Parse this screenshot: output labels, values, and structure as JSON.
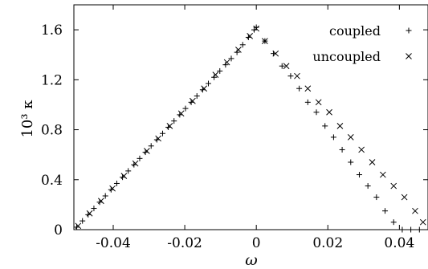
{
  "chart_data": {
    "type": "scatter",
    "xlabel": "ω",
    "ylabel": "10³ κ",
    "xlim": [
      -0.051,
      0.048
    ],
    "ylim": [
      0,
      1.8
    ],
    "xticks": [
      -0.04,
      -0.02,
      0,
      0.02,
      0.04
    ],
    "xtick_labels": [
      "-0.04",
      "-0.02",
      "0",
      "0.02",
      "0.04"
    ],
    "yticks": [
      0,
      0.4,
      0.8,
      1.2,
      1.6
    ],
    "ytick_labels": [
      "0",
      "0.4",
      "0.8",
      "1.2",
      "1.6"
    ],
    "grid": false,
    "legend_position": "top-right",
    "series": [
      {
        "name": "coupled",
        "marker": "plus",
        "x": [
          -0.0502,
          -0.0486,
          -0.047,
          -0.0454,
          -0.0438,
          -0.0422,
          -0.0406,
          -0.039,
          -0.0374,
          -0.0358,
          -0.0342,
          -0.0326,
          -0.031,
          -0.0294,
          -0.0278,
          -0.0262,
          -0.0246,
          -0.023,
          -0.0214,
          -0.0198,
          -0.0182,
          -0.0166,
          -0.015,
          -0.0134,
          -0.0118,
          -0.0102,
          -0.0086,
          -0.007,
          -0.0054,
          -0.0038,
          -0.0022,
          -0.0006,
          0.0,
          0.0024,
          0.0048,
          0.0072,
          0.0096,
          0.012,
          0.0144,
          0.0168,
          0.0192,
          0.0216,
          0.024,
          0.0264,
          0.0288,
          0.0312,
          0.0336,
          0.036,
          0.0384,
          0.0408,
          0.0432,
          0.0456
        ],
        "y": [
          0.02,
          0.07,
          0.12,
          0.17,
          0.22,
          0.27,
          0.32,
          0.37,
          0.42,
          0.47,
          0.52,
          0.57,
          0.62,
          0.67,
          0.72,
          0.77,
          0.82,
          0.87,
          0.92,
          0.97,
          1.02,
          1.07,
          1.12,
          1.17,
          1.22,
          1.27,
          1.32,
          1.37,
          1.42,
          1.48,
          1.54,
          1.6,
          1.62,
          1.51,
          1.41,
          1.31,
          1.23,
          1.13,
          1.02,
          0.94,
          0.83,
          0.74,
          0.64,
          0.54,
          0.44,
          0.35,
          0.26,
          0.15,
          0.06,
          0.0,
          0.0,
          0.0
        ]
      },
      {
        "name": "uncoupled",
        "marker": "cross",
        "x": [
          -0.0498,
          -0.0466,
          -0.0434,
          -0.0402,
          -0.037,
          -0.0338,
          -0.0306,
          -0.0274,
          -0.0242,
          -0.021,
          -0.0178,
          -0.0146,
          -0.0114,
          -0.0082,
          -0.005,
          -0.0018,
          0.0,
          0.0024,
          0.0054,
          0.0084,
          0.0114,
          0.0144,
          0.0174,
          0.0204,
          0.0234,
          0.0264,
          0.0294,
          0.0324,
          0.0354,
          0.0384,
          0.0414,
          0.0444,
          0.0466
        ],
        "y": [
          0.03,
          0.13,
          0.23,
          0.33,
          0.43,
          0.53,
          0.63,
          0.73,
          0.83,
          0.93,
          1.03,
          1.13,
          1.24,
          1.34,
          1.44,
          1.55,
          1.61,
          1.51,
          1.41,
          1.31,
          1.23,
          1.13,
          1.02,
          0.94,
          0.83,
          0.74,
          0.64,
          0.54,
          0.44,
          0.35,
          0.26,
          0.15,
          0.06
        ]
      }
    ]
  }
}
